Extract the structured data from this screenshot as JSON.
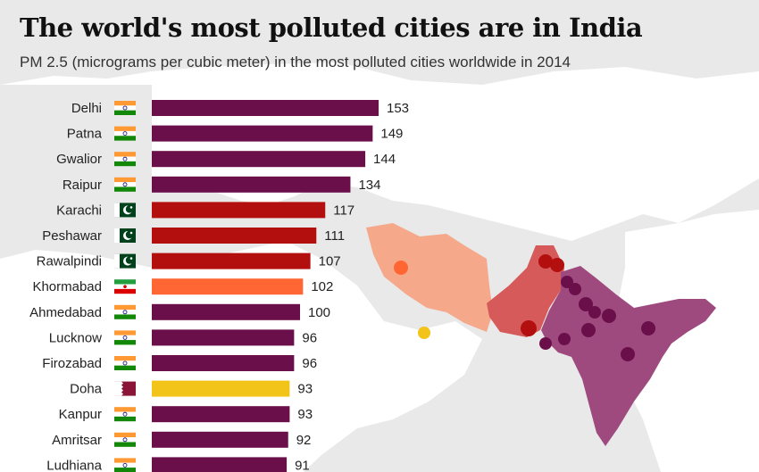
{
  "title": "The world's most polluted cities are in India",
  "subtitle": "PM 2.5 (micrograms per cubic meter) in the most polluted cities worldwide in 2014",
  "colors": {
    "India": "#6b0f4b",
    "Pakistan": "#b30f0f",
    "Iran": "#ff6633",
    "Qatar": "#f2c419",
    "background": "#e9e9e9",
    "land": "#ffffff",
    "map_india": "#9e4a7e",
    "map_pakistan": "#d65a5a",
    "map_iran": "#f5a88a"
  },
  "chart_data": {
    "type": "bar",
    "orientation": "horizontal",
    "categories": [
      "Delhi",
      "Patna",
      "Gwalior",
      "Raipur",
      "Karachi",
      "Peshawar",
      "Rawalpindi",
      "Khormabad",
      "Ahmedabad",
      "Lucknow",
      "Firozabad",
      "Doha",
      "Kanpur",
      "Amritsar",
      "Ludhiana"
    ],
    "countries": [
      "India",
      "India",
      "India",
      "India",
      "Pakistan",
      "Pakistan",
      "Pakistan",
      "Iran",
      "India",
      "India",
      "India",
      "Qatar",
      "India",
      "India",
      "India"
    ],
    "values": [
      153,
      149,
      144,
      134,
      117,
      111,
      107,
      102,
      100,
      96,
      96,
      93,
      93,
      92,
      91
    ],
    "flag_icons": [
      "india-flag-icon",
      "india-flag-icon",
      "india-flag-icon",
      "india-flag-icon",
      "pakistan-flag-icon",
      "pakistan-flag-icon",
      "pakistan-flag-icon",
      "iran-flag-icon",
      "india-flag-icon",
      "india-flag-icon",
      "india-flag-icon",
      "qatar-flag-icon",
      "india-flag-icon",
      "india-flag-icon",
      "india-flag-icon"
    ],
    "xlim": [
      0,
      153
    ],
    "grid": false,
    "legend": "none"
  }
}
